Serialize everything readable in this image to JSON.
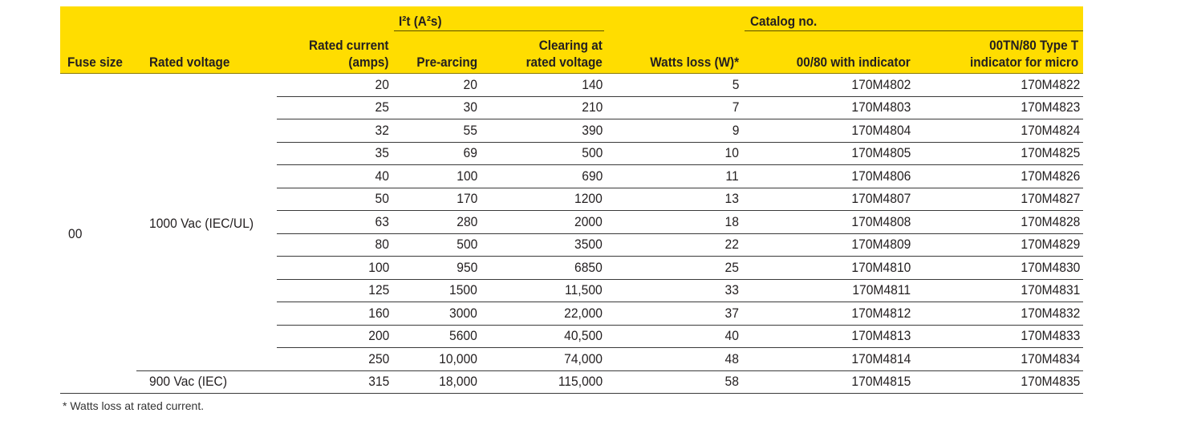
{
  "header": {
    "group_i2t": "I²t (A²s)",
    "group_catalog": "Catalog no.",
    "fuse_size": "Fuse size",
    "rated_voltage": "Rated voltage",
    "rated_current_1": "Rated current",
    "rated_current_2": "(amps)",
    "pre_arcing": "Pre-arcing",
    "clearing_1": "Clearing at",
    "clearing_2": "rated voltage",
    "watts_loss": "Watts loss (W)*",
    "cat_indicator": "00/80 with indicator",
    "cat_micro_1": "00TN/80 Type T",
    "cat_micro_2": "indicator for micro"
  },
  "fuse_size": "00",
  "voltages": [
    "1000 Vac (IEC/UL)",
    "900 Vac (IEC)"
  ],
  "rows": [
    [
      "20",
      "20",
      "140",
      "5",
      "170M4802",
      "170M4822"
    ],
    [
      "25",
      "30",
      "210",
      "7",
      "170M4803",
      "170M4823"
    ],
    [
      "32",
      "55",
      "390",
      "9",
      "170M4804",
      "170M4824"
    ],
    [
      "35",
      "69",
      "500",
      "10",
      "170M4805",
      "170M4825"
    ],
    [
      "40",
      "100",
      "690",
      "11",
      "170M4806",
      "170M4826"
    ],
    [
      "50",
      "170",
      "1200",
      "13",
      "170M4807",
      "170M4827"
    ],
    [
      "63",
      "280",
      "2000",
      "18",
      "170M4808",
      "170M4828"
    ],
    [
      "80",
      "500",
      "3500",
      "22",
      "170M4809",
      "170M4829"
    ],
    [
      "100",
      "950",
      "6850",
      "25",
      "170M4810",
      "170M4830"
    ],
    [
      "125",
      "1500",
      "11,500",
      "33",
      "170M4811",
      "170M4831"
    ],
    [
      "160",
      "3000",
      "22,000",
      "37",
      "170M4812",
      "170M4832"
    ],
    [
      "200",
      "5600",
      "40,500",
      "40",
      "170M4813",
      "170M4833"
    ],
    [
      "250",
      "10,000",
      "74,000",
      "48",
      "170M4814",
      "170M4834"
    ],
    [
      "315",
      "18,000",
      "115,000",
      "58",
      "170M4815",
      "170M4835"
    ]
  ],
  "footnote": "* Watts loss at rated current.",
  "colors": {
    "header_bg": "#ffdd00"
  }
}
